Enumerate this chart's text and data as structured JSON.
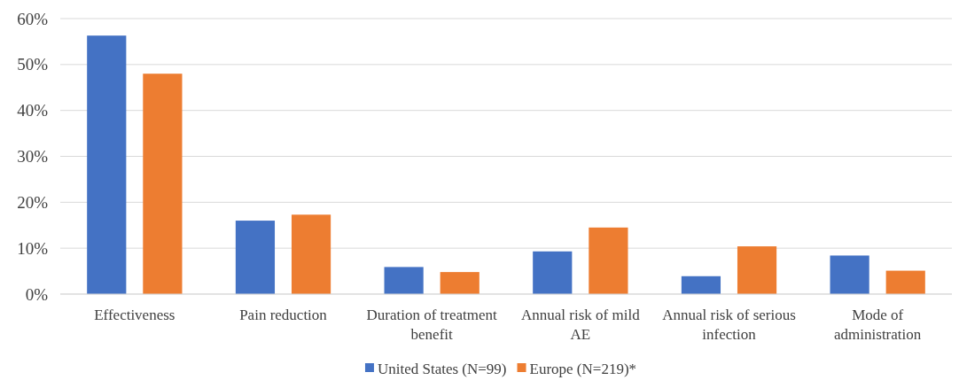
{
  "chart_data": {
    "type": "bar",
    "categories": [
      "Effectiveness",
      "Pain reduction",
      "Duration of treatment benefit",
      "Annual risk of mild AE",
      "Annual risk of serious infection",
      "Mode of administration"
    ],
    "series": [
      {
        "name": "United States (N=99)",
        "color": "#4472c4",
        "values": [
          56.3,
          16.0,
          5.9,
          9.3,
          3.9,
          8.4
        ]
      },
      {
        "name": "Europe (N=219)*",
        "color": "#ed7d31",
        "values": [
          48.0,
          17.3,
          4.8,
          14.5,
          10.4,
          5.1
        ]
      }
    ],
    "ylim": [
      0,
      60
    ],
    "yticks": [
      {
        "value": 0,
        "label": "0%"
      },
      {
        "value": 10,
        "label": "10%"
      },
      {
        "value": 20,
        "label": "20%"
      },
      {
        "value": 30,
        "label": "30%"
      },
      {
        "value": 40,
        "label": "40%"
      },
      {
        "value": 50,
        "label": "50%"
      },
      {
        "value": 60,
        "label": "60%"
      }
    ],
    "grid": "y",
    "legend": "bottom"
  }
}
